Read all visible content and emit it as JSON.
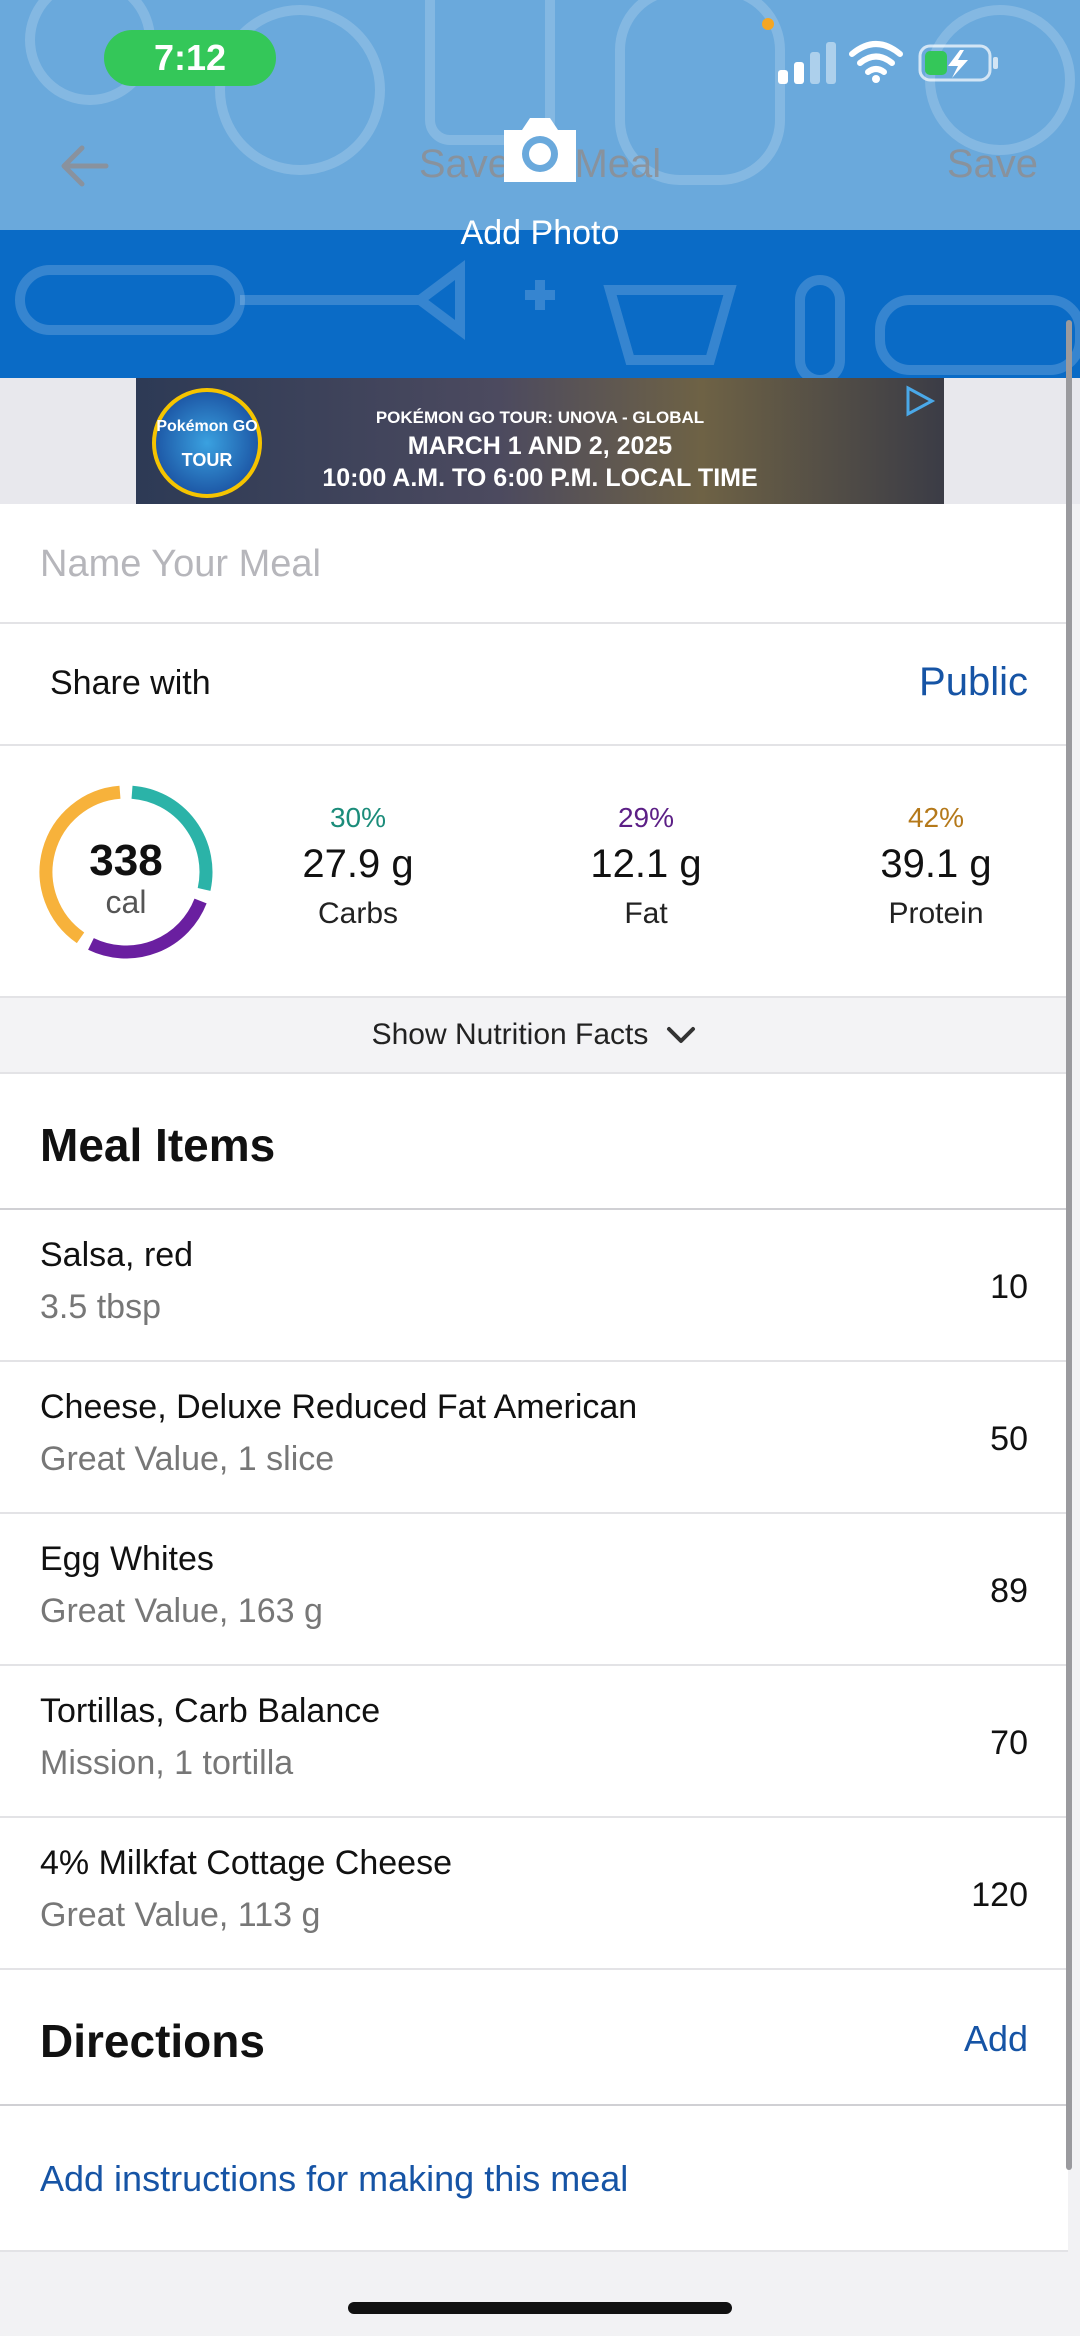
{
  "status_bar": {
    "time": "7:12"
  },
  "header": {
    "title": "Save as Meal",
    "save_label": "Save",
    "add_photo_label": "Add Photo",
    "bg_color": "#0a6bc6"
  },
  "ad": {
    "badge_top": "Pokémon GO",
    "badge_bottom": "TOUR",
    "line1": "POKÉMON GO TOUR: UNOVA - GLOBAL",
    "line2": "MARCH 1 AND 2, 2025",
    "line3": "10:00 A.M. TO 6:00 P.M. LOCAL TIME"
  },
  "meal_name": {
    "placeholder": "Name Your Meal",
    "value": ""
  },
  "share": {
    "label": "Share with",
    "value": "Public"
  },
  "summary": {
    "calories": "338",
    "calories_unit": "cal",
    "ring_fractions": {
      "carbs": 0.3,
      "fat": 0.29,
      "protein": 0.42
    },
    "macros": [
      {
        "pct": "30%",
        "value": "27.9 g",
        "label": "Carbs",
        "color": "#1b8c7a"
      },
      {
        "pct": "29%",
        "value": "12.1 g",
        "label": "Fat",
        "color": "#5c1f86"
      },
      {
        "pct": "42%",
        "value": "39.1 g",
        "label": "Protein",
        "color": "#b5791a"
      }
    ],
    "ring_colors": {
      "carbs": "#2bb3a8",
      "fat": "#6a1fa0",
      "protein": "#f7b23b"
    }
  },
  "nutrition_toggle": {
    "label": "Show Nutrition Facts"
  },
  "meal_items": {
    "title": "Meal Items",
    "items": [
      {
        "name": "Salsa, red",
        "detail": "3.5 tbsp",
        "calories": "10"
      },
      {
        "name": "Cheese, Deluxe Reduced Fat American",
        "detail": "Great Value, 1 slice",
        "calories": "50"
      },
      {
        "name": "Egg Whites",
        "detail": "Great Value, 163 g",
        "calories": "89"
      },
      {
        "name": "Tortillas, Carb Balance",
        "detail": "Mission, 1 tortilla",
        "calories": "70"
      },
      {
        "name": "4% Milkfat Cottage Cheese",
        "detail": "Great Value, 113 g",
        "calories": "120"
      }
    ]
  },
  "directions": {
    "title": "Directions",
    "add_label": "Add",
    "link_text": "Add instructions for making this meal"
  }
}
